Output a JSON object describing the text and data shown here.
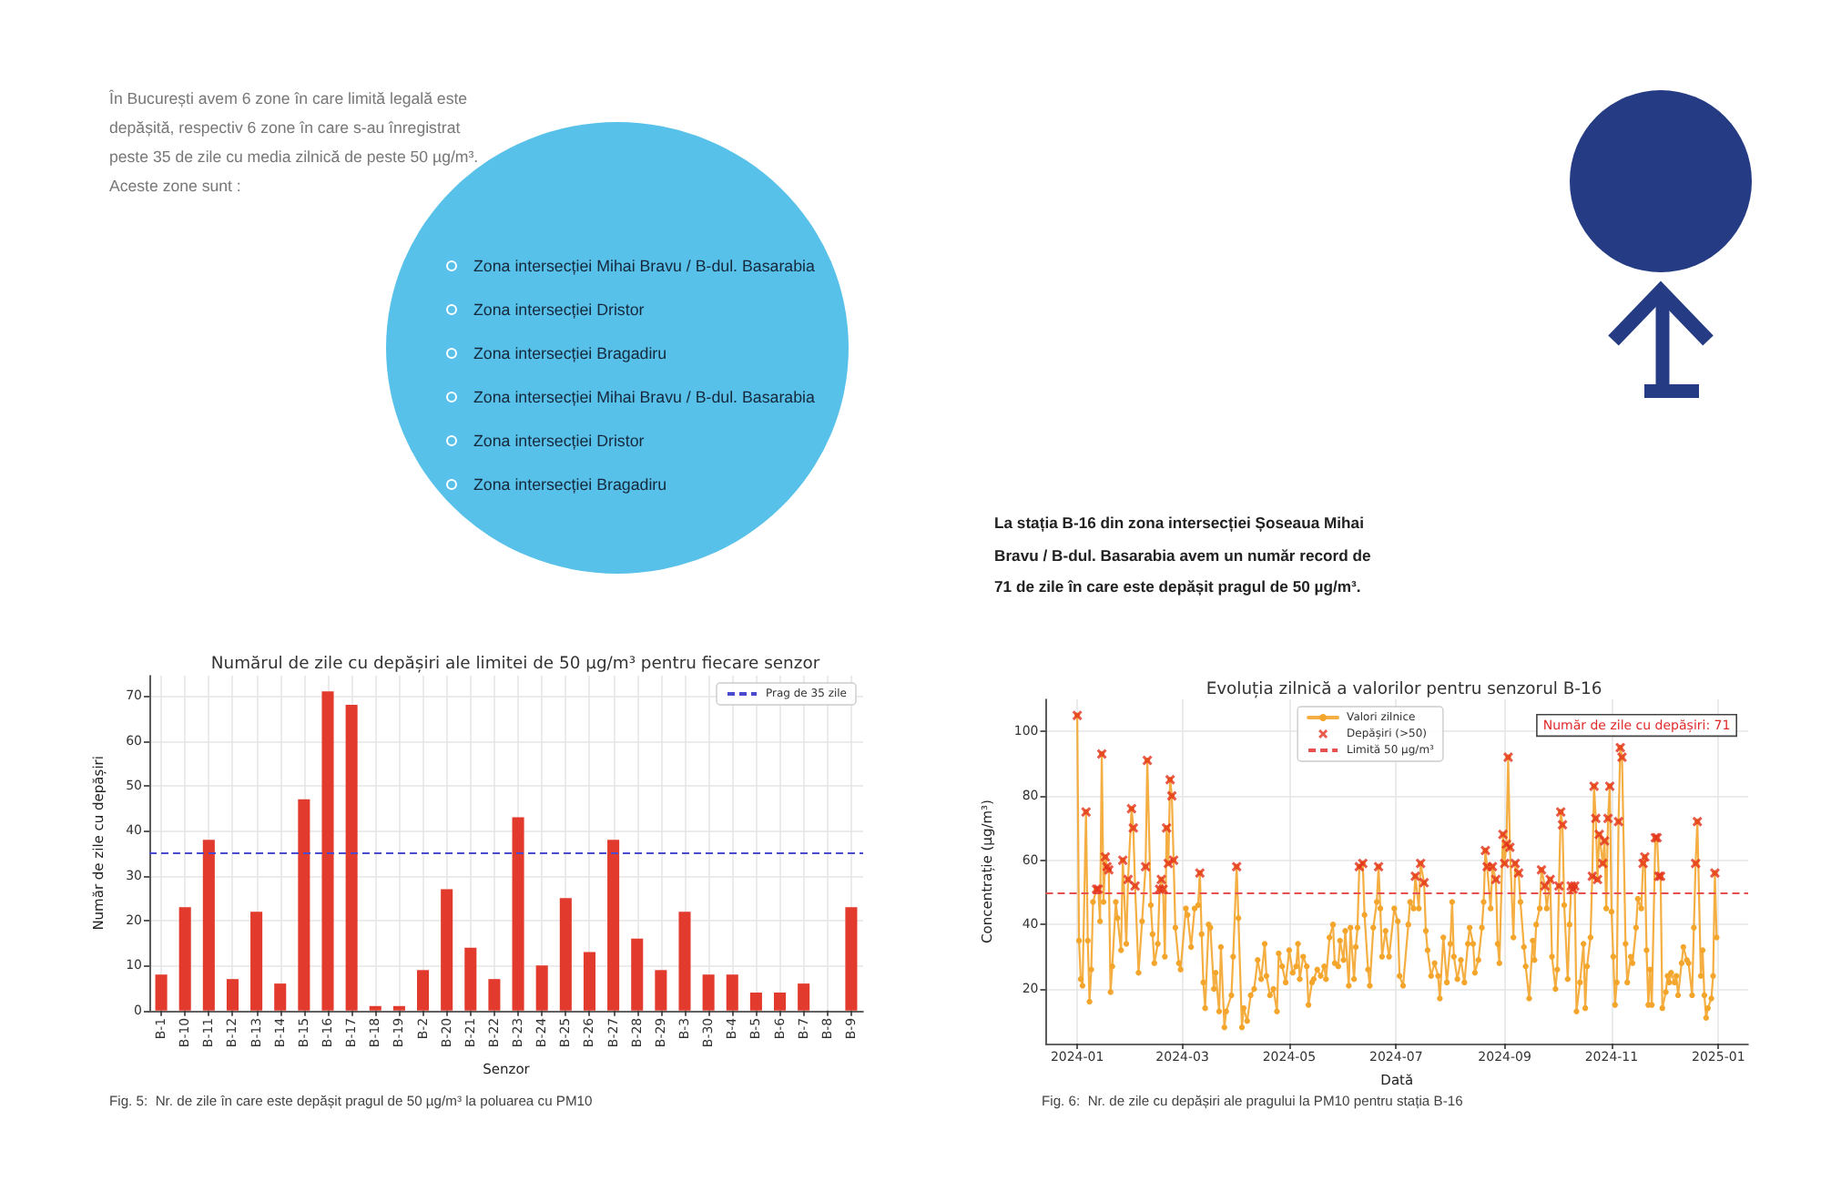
{
  "chart_data": [
    {
      "type": "other",
      "annotations": [
        "În București avem 6 zone în care limită legală este depășită, respectiv 6 zone în care s-au înregistrat peste 35 de zile cu media zilnică de peste 50 µg/m³.",
        "Aceste zone sunt :"
      ]
    },
    {
      "type": "other",
      "annotations": [
        "Zona intersecției Mihai Bravu / B-dul. Basarabia",
        "Zona intersecției Dristor",
        "Zona intersecției Bragadiru",
        "Zona intersecției Mihai Bravu / B-dul. Basarabia",
        "Zona intersecției Dristor",
        "Zona intersecției Bragadiru"
      ]
    },
    {
      "type": "other",
      "annotations": [
        "La stația B-16 din zona intersecției Șoseaua Mihai Bravu / B-dul. Basarabia avem un număr record de 71 de zile în care este depășit pragul de 50 µg/m³."
      ]
    },
    {
      "type": "bar",
      "title": "Numărul de zile cu depășiri ale limitei de 50 µg/m³ pentru fiecare senzor",
      "xlabel": "Senzor",
      "ylabel": "Număr de zile cu depășiri",
      "categories": [
        "B-1",
        "B-10",
        "B-11",
        "B-12",
        "B-13",
        "B-14",
        "B-15",
        "B-16",
        "B-17",
        "B-18",
        "B-19",
        "B-2",
        "B-20",
        "B-21",
        "B-22",
        "B-23",
        "B-24",
        "B-25",
        "B-26",
        "B-27",
        "B-28",
        "B-29",
        "B-3",
        "B-30",
        "B-4",
        "B-5",
        "B-6",
        "B-7",
        "B-8",
        "B-9"
      ],
      "values": [
        8,
        23,
        38,
        7,
        22,
        6,
        47,
        71,
        68,
        1,
        1,
        9,
        27,
        14,
        7,
        43,
        10,
        25,
        13,
        38,
        16,
        9,
        22,
        8,
        8,
        4,
        4,
        6,
        0,
        23
      ],
      "color": "#e23a2c",
      "ylim": [
        0,
        74.5
      ],
      "yticks": [
        0,
        10,
        20,
        30,
        40,
        50,
        60,
        70
      ],
      "grid": true,
      "legend": "top right",
      "ref_lines": [
        {
          "axis": "y",
          "value": 35,
          "label": "Prag de 35 zile",
          "color": "#4b4bd0",
          "line_style": "dashed"
        }
      ],
      "annotations": [
        "Fig. 5:  Nr. de zile în care este depășit pragul de 50 µg/m³ la poluarea cu PM10"
      ]
    },
    {
      "type": "line",
      "title": "Evoluția zilnică a valorilor pentru senzorul B-16",
      "xlabel": "Dată",
      "ylabel": "Concentrație (µg/m³)",
      "xlim": [
        "2023-12-14",
        "2025-01-18"
      ],
      "xticks": [
        "2024-01",
        "2024-03",
        "2024-05",
        "2024-07",
        "2024-09",
        "2024-11",
        "2025-01"
      ],
      "ylim": [
        3,
        110
      ],
      "yticks": [
        20,
        40,
        60,
        80,
        100
      ],
      "grid": true,
      "legend": "top",
      "series": [
        {
          "name": "Valori zilnice",
          "color": "#f3a52c",
          "marker": "circle",
          "x": [
            "2024-01-01",
            "2024-01-02",
            "2024-01-03",
            "2024-01-04",
            "2024-01-06",
            "2024-01-07",
            "2024-01-08",
            "2024-01-09",
            "2024-01-10",
            "2024-01-12",
            "2024-01-13",
            "2024-01-14",
            "2024-01-15",
            "2024-01-16",
            "2024-01-17",
            "2024-01-18",
            "2024-01-19",
            "2024-01-20",
            "2024-01-21",
            "2024-01-23",
            "2024-01-24",
            "2024-01-26",
            "2024-01-27",
            "2024-01-29",
            "2024-01-30",
            "2024-02-01",
            "2024-02-02",
            "2024-02-03",
            "2024-02-05",
            "2024-02-07",
            "2024-02-09",
            "2024-02-10",
            "2024-02-12",
            "2024-02-13",
            "2024-02-14",
            "2024-02-16",
            "2024-02-17",
            "2024-02-18",
            "2024-02-19",
            "2024-02-20",
            "2024-02-21",
            "2024-02-22",
            "2024-02-23",
            "2024-02-24",
            "2024-02-25",
            "2024-02-26",
            "2024-02-28",
            "2024-02-29",
            "2024-03-03",
            "2024-03-04",
            "2024-03-06",
            "2024-03-08",
            "2024-03-10",
            "2024-03-11",
            "2024-03-12",
            "2024-03-13",
            "2024-03-14",
            "2024-03-16",
            "2024-03-17",
            "2024-03-19",
            "2024-03-20",
            "2024-03-22",
            "2024-03-23",
            "2024-03-25",
            "2024-03-26",
            "2024-03-29",
            "2024-03-30",
            "2024-04-01",
            "2024-04-02",
            "2024-04-04",
            "2024-04-05",
            "2024-04-07",
            "2024-04-09",
            "2024-04-11",
            "2024-04-13",
            "2024-04-15",
            "2024-04-17",
            "2024-04-18",
            "2024-04-20",
            "2024-04-22",
            "2024-04-24",
            "2024-04-25",
            "2024-04-27",
            "2024-04-29",
            "2024-05-01",
            "2024-05-03",
            "2024-05-05",
            "2024-05-06",
            "2024-05-07",
            "2024-05-09",
            "2024-05-11",
            "2024-05-12",
            "2024-05-14",
            "2024-05-15",
            "2024-05-17",
            "2024-05-19",
            "2024-05-21",
            "2024-05-22",
            "2024-05-24",
            "2024-05-26",
            "2024-05-27",
            "2024-05-29",
            "2024-05-30",
            "2024-06-01",
            "2024-06-02",
            "2024-06-04",
            "2024-06-05",
            "2024-06-07",
            "2024-06-08",
            "2024-06-09",
            "2024-06-10",
            "2024-06-12",
            "2024-06-13",
            "2024-06-15",
            "2024-06-16",
            "2024-06-18",
            "2024-06-20",
            "2024-06-21",
            "2024-06-22",
            "2024-06-23",
            "2024-06-25",
            "2024-06-27",
            "2024-06-30",
            "2024-07-02",
            "2024-07-03",
            "2024-07-05",
            "2024-07-08",
            "2024-07-09",
            "2024-07-11",
            "2024-07-12",
            "2024-07-14",
            "2024-07-15",
            "2024-07-17",
            "2024-07-18",
            "2024-07-19",
            "2024-07-21",
            "2024-07-23",
            "2024-07-25",
            "2024-07-26",
            "2024-07-28",
            "2024-07-30",
            "2024-08-01",
            "2024-08-02",
            "2024-08-03",
            "2024-08-05",
            "2024-08-07",
            "2024-08-09",
            "2024-08-11",
            "2024-08-12",
            "2024-08-14",
            "2024-08-15",
            "2024-08-17",
            "2024-08-19",
            "2024-08-20",
            "2024-08-21",
            "2024-08-22",
            "2024-08-24",
            "2024-08-25",
            "2024-08-27",
            "2024-08-28",
            "2024-08-29",
            "2024-08-31",
            "2024-09-01",
            "2024-09-02",
            "2024-09-03",
            "2024-09-04",
            "2024-09-06",
            "2024-09-07",
            "2024-09-09",
            "2024-09-10",
            "2024-09-12",
            "2024-09-13",
            "2024-09-15",
            "2024-09-17",
            "2024-09-18",
            "2024-09-19",
            "2024-09-21",
            "2024-09-22",
            "2024-09-24",
            "2024-09-25",
            "2024-09-27",
            "2024-09-28",
            "2024-09-30",
            "2024-10-01",
            "2024-10-02",
            "2024-10-03",
            "2024-10-04",
            "2024-10-05",
            "2024-10-07",
            "2024-10-08",
            "2024-10-09",
            "2024-10-10",
            "2024-10-11",
            "2024-10-12",
            "2024-10-14",
            "2024-10-16",
            "2024-10-17",
            "2024-10-18",
            "2024-10-20",
            "2024-10-21",
            "2024-10-22",
            "2024-10-23",
            "2024-10-24",
            "2024-10-25",
            "2024-10-27",
            "2024-10-28",
            "2024-10-29",
            "2024-10-30",
            "2024-10-31",
            "2024-11-01",
            "2024-11-02",
            "2024-11-03",
            "2024-11-04",
            "2024-11-05",
            "2024-11-06",
            "2024-11-07",
            "2024-11-09",
            "2024-11-10",
            "2024-11-12",
            "2024-11-13",
            "2024-11-15",
            "2024-11-16",
            "2024-11-18",
            "2024-11-19",
            "2024-11-20",
            "2024-11-21",
            "2024-11-22",
            "2024-11-23",
            "2024-11-24",
            "2024-11-26",
            "2024-11-27",
            "2024-11-28",
            "2024-11-29",
            "2024-11-30",
            "2024-12-02",
            "2024-12-03",
            "2024-12-04",
            "2024-12-05",
            "2024-12-07",
            "2024-12-08",
            "2024-12-09",
            "2024-12-11",
            "2024-12-12",
            "2024-12-14",
            "2024-12-15",
            "2024-12-17",
            "2024-12-18",
            "2024-12-19",
            "2024-12-20",
            "2024-12-22",
            "2024-12-23",
            "2024-12-24",
            "2024-12-25",
            "2024-12-26",
            "2024-12-28",
            "2024-12-29",
            "2024-12-30",
            "2024-12-31"
          ],
          "values": [
            105,
            35,
            23,
            21,
            75,
            35,
            16,
            26,
            47,
            51,
            51,
            41,
            93,
            47,
            61,
            58,
            57,
            19,
            27,
            47,
            42,
            32,
            60,
            34,
            54,
            76,
            70,
            52,
            25,
            41,
            58,
            91,
            46,
            37,
            28,
            34,
            51,
            54,
            51,
            30,
            70,
            59,
            85,
            80,
            60,
            39,
            28,
            26,
            45,
            43,
            33,
            45,
            46,
            56,
            37,
            22,
            14,
            40,
            39,
            20,
            25,
            13,
            33,
            8,
            13,
            18,
            30,
            58,
            42,
            8,
            14,
            10,
            18,
            20,
            29,
            23,
            34,
            24,
            18,
            20,
            13,
            31,
            27,
            22,
            32,
            25,
            27,
            34,
            23,
            30,
            27,
            15,
            22,
            23,
            26,
            24,
            27,
            23,
            36,
            40,
            28,
            27,
            35,
            29,
            38,
            21,
            39,
            23,
            33,
            39,
            58,
            59,
            43,
            26,
            21,
            39,
            47,
            58,
            45,
            30,
            38,
            30,
            45,
            41,
            24,
            21,
            40,
            47,
            45,
            55,
            45,
            59,
            53,
            38,
            32,
            24,
            28,
            24,
            17,
            36,
            22,
            34,
            47,
            30,
            23,
            29,
            22,
            34,
            39,
            34,
            25,
            29,
            39,
            47,
            63,
            58,
            45,
            58,
            54,
            34,
            28,
            68,
            59,
            65,
            92,
            64,
            36,
            59,
            56,
            47,
            33,
            27,
            17,
            35,
            29,
            40,
            45,
            57,
            52,
            45,
            54,
            30,
            20,
            26,
            52,
            75,
            71,
            46,
            23,
            40,
            52,
            51,
            52,
            13,
            22,
            34,
            14,
            27,
            36,
            55,
            83,
            73,
            54,
            68,
            59,
            66,
            45,
            73,
            83,
            44,
            30,
            15,
            22,
            72,
            95,
            92,
            34,
            22,
            30,
            28,
            39,
            48,
            45,
            59,
            61,
            32,
            15,
            26,
            15,
            67,
            67,
            55,
            55,
            14,
            19,
            24,
            22,
            25,
            22,
            24,
            18,
            28,
            33,
            29,
            28,
            18,
            39,
            59,
            72,
            24,
            32,
            18,
            11,
            14,
            17,
            24,
            56,
            36
          ]
        },
        {
          "name": "Depășiri (>50)",
          "type": "scatter",
          "color": "#e4321f",
          "marker": "cross",
          "x": [
            "2024-01-01",
            "2024-01-06",
            "2024-01-12",
            "2024-01-13",
            "2024-01-15",
            "2024-01-17",
            "2024-01-18",
            "2024-01-19",
            "2024-01-27",
            "2024-01-30",
            "2024-02-01",
            "2024-02-02",
            "2024-02-03",
            "2024-02-09",
            "2024-02-10",
            "2024-02-17",
            "2024-02-18",
            "2024-02-19",
            "2024-02-21",
            "2024-02-22",
            "2024-02-23",
            "2024-02-24",
            "2024-02-25",
            "2024-03-11",
            "2024-04-01",
            "2024-06-10",
            "2024-06-12",
            "2024-06-21",
            "2024-07-12",
            "2024-07-15",
            "2024-07-17",
            "2024-08-21",
            "2024-08-22",
            "2024-08-25",
            "2024-08-27",
            "2024-08-31",
            "2024-09-01",
            "2024-09-02",
            "2024-09-03",
            "2024-09-04",
            "2024-09-07",
            "2024-09-09",
            "2024-09-22",
            "2024-09-24",
            "2024-09-27",
            "2024-10-02",
            "2024-10-03",
            "2024-10-04",
            "2024-10-09",
            "2024-10-10",
            "2024-10-11",
            "2024-10-21",
            "2024-10-22",
            "2024-10-23",
            "2024-10-24",
            "2024-10-25",
            "2024-10-27",
            "2024-10-28",
            "2024-10-30",
            "2024-10-31",
            "2024-11-05",
            "2024-11-06",
            "2024-11-07",
            "2024-11-19",
            "2024-11-20",
            "2024-11-26",
            "2024-11-27",
            "2024-11-28",
            "2024-11-29",
            "2024-12-19",
            "2024-12-20",
            "2024-12-30"
          ],
          "values": [
            105,
            75,
            51,
            51,
            93,
            61,
            58,
            57,
            60,
            54,
            76,
            70,
            52,
            58,
            91,
            51,
            54,
            51,
            70,
            59,
            85,
            80,
            60,
            56,
            58,
            58,
            59,
            58,
            55,
            59,
            53,
            63,
            58,
            58,
            54,
            68,
            59,
            65,
            92,
            64,
            59,
            56,
            57,
            52,
            54,
            52,
            75,
            71,
            52,
            51,
            52,
            55,
            83,
            73,
            54,
            68,
            59,
            66,
            73,
            83,
            72,
            95,
            92,
            59,
            61,
            67,
            67,
            55,
            55,
            59,
            72,
            56
          ]
        }
      ],
      "ref_lines": [
        {
          "axis": "y",
          "value": 50,
          "label": "Limită 50 µg/m³",
          "color": "#e85050",
          "line_style": "dashed"
        }
      ],
      "annotations": [
        "Număr de zile cu depășiri: 71",
        "Fig. 6:  Nr. de zile cu depășiri ale pragului la PM10 pentru stația B-16"
      ]
    }
  ]
}
